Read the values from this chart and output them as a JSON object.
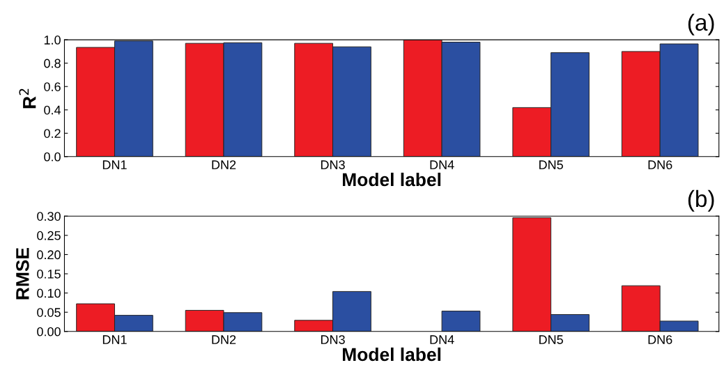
{
  "chart_data": [
    {
      "type": "bar",
      "ylabel": "R$^{2}$",
      "xlabel": "Model label",
      "annotations": [
        "(a)"
      ],
      "categories": [
        "DN1",
        "DN2",
        "DN3",
        "DN4",
        "DN5",
        "DN6"
      ],
      "series": [
        {
          "color": "#ed1c24",
          "values": [
            0.935,
            0.97,
            0.97,
            1.0,
            0.42,
            0.9
          ]
        },
        {
          "color": "#2b4fa1",
          "values": [
            0.99,
            0.975,
            0.94,
            0.98,
            0.89,
            0.965
          ]
        }
      ],
      "ylim": [
        0,
        1.0
      ],
      "yticks": [
        {
          "value": 0,
          "label": "0.0"
        },
        0.2,
        0.4,
        0.6,
        0.8,
        {
          "value": 1.0,
          "label": "1.0"
        }
      ],
      "grid": false,
      "legend": false
    },
    {
      "type": "bar",
      "ylabel": "RMSE",
      "xlabel": "Model label",
      "annotations": [
        "(b)"
      ],
      "categories": [
        "DN1",
        "DN2",
        "DN3",
        "DN4",
        "DN5",
        "DN6"
      ],
      "series": [
        {
          "color": "#ed1c24",
          "values": [
            0.072,
            0.055,
            0.029,
            null,
            0.296,
            0.119
          ]
        },
        {
          "color": "#2b4fa1",
          "values": [
            0.042,
            0.049,
            0.104,
            0.053,
            0.044,
            0.027
          ]
        }
      ],
      "ylim": [
        0,
        0.3
      ],
      "yticks": [
        {
          "value": 0,
          "label": "0.00"
        },
        0.05,
        {
          "value": 0.1,
          "label": "0.10"
        },
        0.15,
        {
          "value": 0.2,
          "label": "0.20"
        },
        0.25,
        {
          "value": 0.3,
          "label": "0.30"
        }
      ],
      "grid": false,
      "legend": false
    }
  ]
}
